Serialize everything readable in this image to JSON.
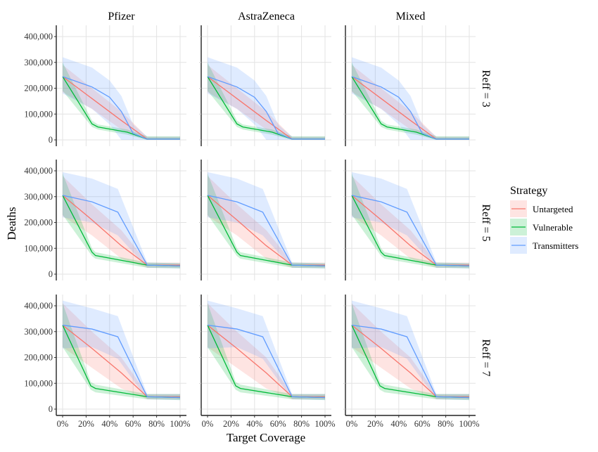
{
  "chart_data": {
    "type": "line",
    "xlabel": "Target Coverage",
    "ylabel": "Deaths",
    "x_ticks": [
      "0%",
      "20%",
      "40%",
      "60%",
      "80%",
      "100%"
    ],
    "x_tick_values": [
      0,
      20,
      40,
      60,
      80,
      100
    ],
    "y_ticks": [
      "0",
      "100,000",
      "200,000",
      "300,000",
      "400,000"
    ],
    "y_tick_values": [
      0,
      100000,
      200000,
      300000,
      400000
    ],
    "xlim": [
      0,
      100
    ],
    "ylim": [
      0,
      400000
    ],
    "grid": true,
    "legend": {
      "title": "Strategy",
      "placement": "right",
      "entries": [
        "Untargeted",
        "Vulnerable",
        "Transmitters"
      ]
    },
    "colors": {
      "Untargeted": "#F8766D",
      "Vulnerable": "#00BA38",
      "Transmitters": "#619CFF"
    },
    "columns": [
      "Pfizer",
      "AstraZeneca",
      "Mixed"
    ],
    "rows": [
      {
        "label": "Reff = 3",
        "series": [
          {
            "name": "Untargeted",
            "x": [
              0,
              25,
              50,
              72,
              100
            ],
            "y": [
              245000,
              160000,
              75000,
              3000,
              3000
            ],
            "lo": [
              185000,
              120000,
              40000,
              0,
              0
            ],
            "hi": [
              290000,
              200000,
              110000,
              12000,
              12000
            ]
          },
          {
            "name": "Vulnerable",
            "x": [
              0,
              25,
              30,
              55,
              72,
              100
            ],
            "y": [
              245000,
              62000,
              50000,
              30000,
              3000,
              3000
            ],
            "lo": [
              190000,
              50000,
              40000,
              20000,
              0,
              0
            ],
            "hi": [
              300000,
              75000,
              60000,
              40000,
              14000,
              14000
            ]
          },
          {
            "name": "Transmitters",
            "x": [
              0,
              25,
              40,
              50,
              60,
              72,
              100
            ],
            "y": [
              245000,
              205000,
              165000,
              110000,
              25000,
              3000,
              3000
            ],
            "lo": [
              180000,
              120000,
              60000,
              0,
              0,
              0,
              0
            ],
            "hi": [
              320000,
              280000,
              230000,
              170000,
              60000,
              12000,
              12000
            ]
          }
        ]
      },
      {
        "label": "Reff = 5",
        "series": [
          {
            "name": "Untargeted",
            "x": [
              0,
              25,
              50,
              72,
              100
            ],
            "y": [
              305000,
              210000,
              110000,
              35000,
              35000
            ],
            "lo": [
              225000,
              150000,
              60000,
              25000,
              25000
            ],
            "hi": [
              380000,
              270000,
              170000,
              45000,
              45000
            ]
          },
          {
            "name": "Vulnerable",
            "x": [
              0,
              25,
              28,
              72,
              100
            ],
            "y": [
              305000,
              85000,
              72000,
              35000,
              32000
            ],
            "lo": [
              230000,
              70000,
              60000,
              25000,
              22000
            ],
            "hi": [
              390000,
              100000,
              85000,
              45000,
              42000
            ]
          },
          {
            "name": "Transmitters",
            "x": [
              0,
              25,
              47,
              72,
              100
            ],
            "y": [
              305000,
              280000,
              240000,
              35000,
              32000
            ],
            "lo": [
              220000,
              200000,
              150000,
              25000,
              22000
            ],
            "hi": [
              395000,
              370000,
              330000,
              45000,
              42000
            ]
          }
        ]
      },
      {
        "label": "Reff = 7",
        "series": [
          {
            "name": "Untargeted",
            "x": [
              0,
              25,
              50,
              72,
              100
            ],
            "y": [
              325000,
              235000,
              140000,
              48000,
              48000
            ],
            "lo": [
              240000,
              160000,
              80000,
              38000,
              38000
            ],
            "hi": [
              410000,
              300000,
              200000,
              58000,
              58000
            ]
          },
          {
            "name": "Vulnerable",
            "x": [
              0,
              24,
              28,
              72,
              100
            ],
            "y": [
              325000,
              90000,
              80000,
              48000,
              45000
            ],
            "lo": [
              240000,
              75000,
              65000,
              38000,
              35000
            ],
            "hi": [
              410000,
              105000,
              95000,
              58000,
              58000
            ]
          },
          {
            "name": "Transmitters",
            "x": [
              0,
              25,
              47,
              72,
              100
            ],
            "y": [
              325000,
              310000,
              280000,
              48000,
              45000
            ],
            "lo": [
              235000,
              240000,
              195000,
              38000,
              35000
            ],
            "hi": [
              420000,
              390000,
              360000,
              58000,
              58000
            ]
          }
        ]
      }
    ]
  }
}
